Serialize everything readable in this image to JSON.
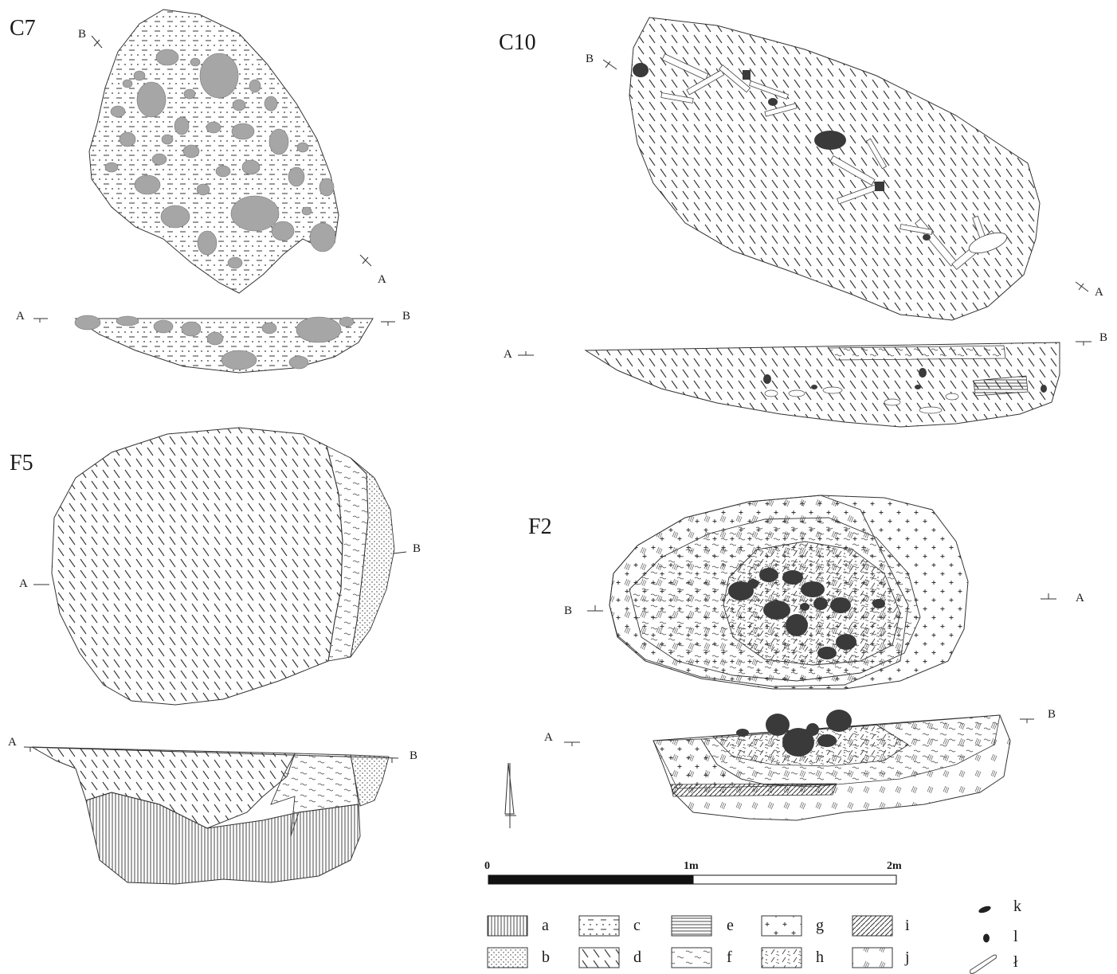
{
  "figures": {
    "c7": {
      "title": "C7",
      "label_a": "A",
      "label_b": "B"
    },
    "c10": {
      "title": "C10",
      "label_a": "A",
      "label_b": "B"
    },
    "f5": {
      "title": "F5",
      "label_a": "A",
      "label_b": "B"
    },
    "f2": {
      "title": "F2",
      "label_a": "A",
      "label_b": "B"
    }
  },
  "scale_bar": {
    "labels": [
      "0",
      "1m",
      "2m"
    ]
  },
  "legend": {
    "items": [
      "a",
      "b",
      "c",
      "d",
      "e",
      "f",
      "g",
      "h",
      "i",
      "j"
    ],
    "symbols": [
      "k",
      "l",
      "ł"
    ]
  },
  "colors": {
    "stone_gray": "#a6a6a6",
    "stone_dark": "#3a3a3a",
    "line": "#333333"
  }
}
